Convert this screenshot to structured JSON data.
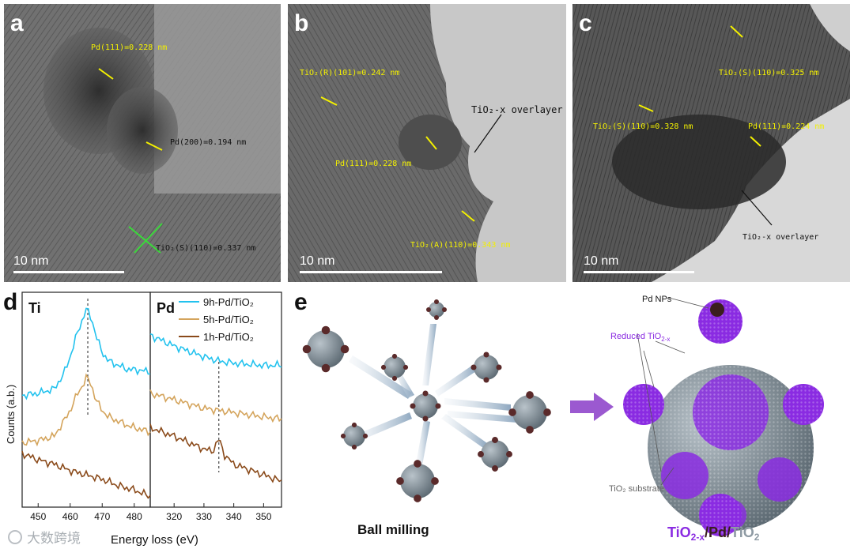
{
  "panel_a": {
    "label": "a",
    "ann_pd111": "Pd(111)=0.228 nm",
    "ann_pd200": "Pd(200)=0.194 nm",
    "ann_tio2": "TiO₂(S)(110)=0.337 nm",
    "scale": "10 nm"
  },
  "panel_b": {
    "label": "b",
    "ann_tio2r": "TiO₂(R)(101)=0.242 nm",
    "ann_overlayer": "TiO₂-x overlayer",
    "ann_pd111": "Pd(111)=0.228 nm",
    "ann_tio2a": "TiO₂(A)(110)=0.343 nm",
    "scale": "10 nm"
  },
  "panel_c": {
    "label": "c",
    "ann_tio2s_top": "TiO₂(S)(110)=0.325 nm",
    "ann_tio2s_mid": "TiO₂(S)(110)=0.328 nm",
    "ann_pd111": "Pd(111)=0.224 nm",
    "ann_overlayer": "TiO₂-x overlayer",
    "scale": "10 nm"
  },
  "panel_d": {
    "label": "d",
    "subplot_ti": "Ti",
    "subplot_pd": "Pd",
    "ylabel": "Counts (a.b.)",
    "xlabel": "Energy loss (eV)",
    "legend": [
      "9h-Pd/TiO₂",
      "5h-Pd/TiO₂",
      "1h-Pd/TiO₂"
    ],
    "series_colors": [
      "#22c2ee",
      "#d4a45c",
      "#8a4a1a"
    ]
  },
  "chart_data": {
    "type": "line",
    "ylabel": "Counts (a.b.)",
    "xlabel": "Energy loss (eV)",
    "legend_position": "top-right",
    "subplots": [
      {
        "title": "Ti",
        "xlim": [
          445,
          485
        ],
        "xticks": [
          450,
          460,
          470,
          480
        ],
        "marker_x": 465.5,
        "series": [
          {
            "name": "9h-Pd/TiO₂",
            "x": [
              445,
              450,
              455,
              458,
              460,
              462,
              464,
              465,
              466,
              467,
              468,
              470,
              472,
              475,
              478,
              480,
              485
            ],
            "y": [
              0.52,
              0.53,
              0.55,
              0.62,
              0.7,
              0.8,
              0.88,
              0.92,
              0.9,
              0.86,
              0.8,
              0.72,
              0.68,
              0.66,
              0.64,
              0.64,
              0.63
            ]
          },
          {
            "name": "5h-Pd/TiO₂",
            "x": [
              445,
              450,
              455,
              458,
              460,
              462,
              464,
              465,
              466,
              467,
              468,
              470,
              472,
              475,
              478,
              480,
              485
            ],
            "y": [
              0.3,
              0.31,
              0.33,
              0.4,
              0.45,
              0.52,
              0.57,
              0.6,
              0.59,
              0.55,
              0.5,
              0.45,
              0.42,
              0.4,
              0.38,
              0.37,
              0.35
            ]
          },
          {
            "name": "1h-Pd/TiO₂",
            "x": [
              445,
              450,
              455,
              460,
              465,
              470,
              475,
              480,
              485
            ],
            "y": [
              0.25,
              0.22,
              0.2,
              0.17,
              0.15,
              0.13,
              0.1,
              0.08,
              0.05
            ]
          }
        ]
      },
      {
        "title": "Pd",
        "xlim": [
          312,
          356
        ],
        "xticks": [
          320,
          330,
          340,
          350
        ],
        "marker_x": 335,
        "series": [
          {
            "name": "9h-Pd/TiO₂",
            "x": [
              312,
              320,
              330,
              335,
              340,
              350,
              356
            ],
            "y": [
              0.8,
              0.75,
              0.7,
              0.68,
              0.67,
              0.66,
              0.66
            ]
          },
          {
            "name": "5h-Pd/TiO₂",
            "x": [
              312,
              320,
              330,
              335,
              340,
              350,
              356
            ],
            "y": [
              0.53,
              0.5,
              0.46,
              0.45,
              0.44,
              0.42,
              0.41
            ]
          },
          {
            "name": "1h-Pd/TiO₂",
            "x": [
              312,
              320,
              330,
              333,
              335,
              337,
              340,
              350,
              356
            ],
            "y": [
              0.37,
              0.33,
              0.27,
              0.26,
              0.32,
              0.24,
              0.2,
              0.15,
              0.12
            ]
          }
        ]
      }
    ]
  },
  "panel_e": {
    "label": "e",
    "caption_left": "Ball milling",
    "pd_nps": "Pd NPs",
    "reduced": "Reduced TiO",
    "reduced_sub": "2-x",
    "substrate": "TiO₂ substrate",
    "formula": {
      "part1": "TiO",
      "part1_sub": "2-x",
      "sep1": "/Pd/",
      "part2": "TiO",
      "part2_sub": "2"
    },
    "colors": {
      "purple": "#8a2be2",
      "gray": "#8e9aa3",
      "pd": "#5a2a2a",
      "arrow": "#9b59d0"
    }
  },
  "watermark": "大数跨境"
}
